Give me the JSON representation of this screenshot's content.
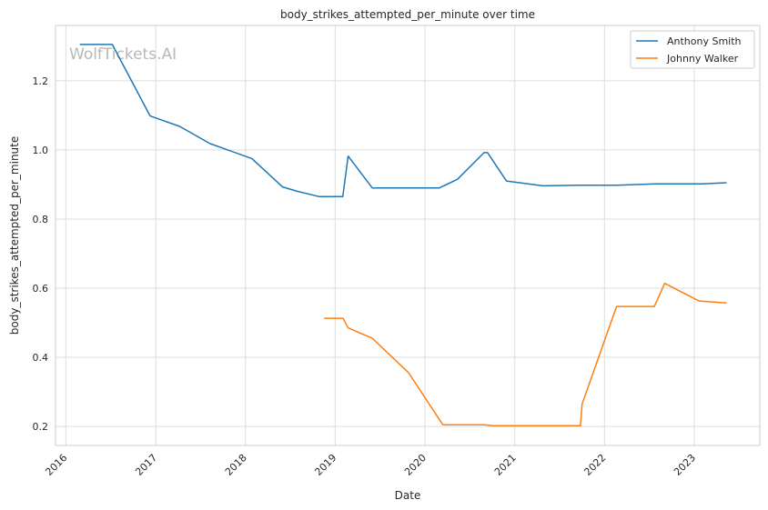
{
  "chart_data": {
    "type": "line",
    "title": "body_strikes_attempted_per_minute over time",
    "xlabel": "Date",
    "ylabel": "body_strikes_attempted_per_minute",
    "watermark": "WolfTickets.AI",
    "xlim": [
      "2015-11-20",
      "2023-09-25"
    ],
    "ylim": [
      0.145,
      1.36
    ],
    "grid": true,
    "legend_position": "top-right",
    "x_ticks": [
      "2016",
      "2017",
      "2018",
      "2019",
      "2020",
      "2021",
      "2022",
      "2023"
    ],
    "y_ticks": [
      "0.2",
      "0.4",
      "0.6",
      "0.8",
      "1.0",
      "1.2"
    ],
    "series": [
      {
        "name": "Anthony Smith",
        "color": "#1f77b4",
        "x": [
          "2016-02-27",
          "2016-07-08",
          "2016-12-09",
          "2017-04-08",
          "2017-08-10",
          "2018-01-27",
          "2018-06-01",
          "2018-08-01",
          "2018-10-27",
          "2019-02-01",
          "2019-02-23",
          "2019-06-01",
          "2019-10-01",
          "2020-02-29",
          "2020-05-13",
          "2020-08-29",
          "2020-09-12",
          "2020-11-28",
          "2021-04-24",
          "2021-09-25",
          "2022-02-19",
          "2022-07-30",
          "2023-02-01",
          "2023-05-13"
        ],
        "values": [
          1.305,
          1.305,
          1.098,
          1.068,
          1.018,
          0.975,
          0.893,
          0.88,
          0.865,
          0.865,
          0.982,
          0.89,
          0.89,
          0.89,
          0.915,
          0.992,
          0.992,
          0.91,
          0.896,
          0.898,
          0.898,
          0.902,
          0.902,
          0.905
        ]
      },
      {
        "name": "Johnny Walker",
        "color": "#ff7f0e",
        "x": [
          "2018-11-17",
          "2019-02-02",
          "2019-02-23",
          "2019-06-01",
          "2019-10-27",
          "2020-03-14",
          "2020-08-29",
          "2020-10-03",
          "2021-09-25",
          "2021-10-02",
          "2022-02-19",
          "2022-07-23",
          "2022-09-03",
          "2023-01-21",
          "2023-05-13"
        ],
        "values": [
          0.513,
          0.513,
          0.485,
          0.455,
          0.355,
          0.205,
          0.205,
          0.202,
          0.202,
          0.265,
          0.547,
          0.547,
          0.614,
          0.563,
          0.557
        ]
      }
    ]
  }
}
